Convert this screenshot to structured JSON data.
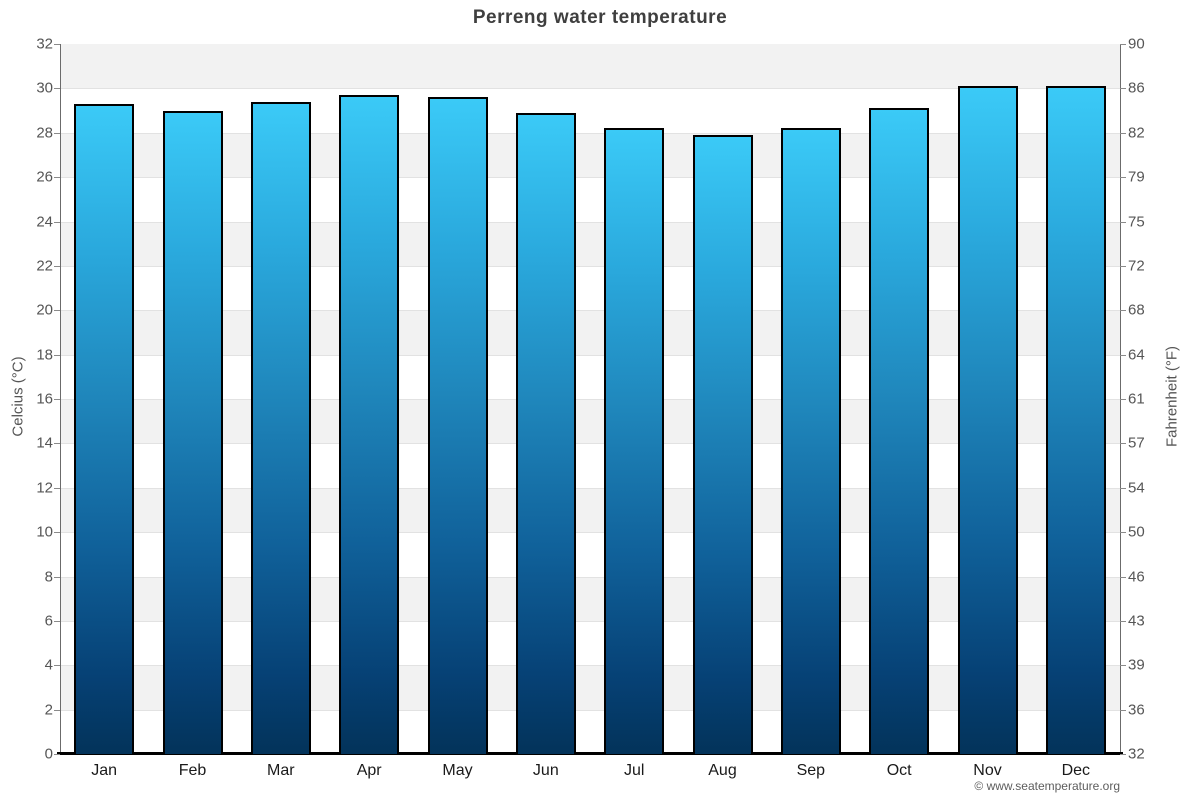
{
  "title": "Perreng water temperature",
  "y_axis_left": {
    "label": "Celcius (°C)",
    "ticks_top_to_bottom": [
      "32",
      "30",
      "28",
      "26",
      "24",
      "22",
      "20",
      "18",
      "16",
      "14",
      "12",
      "10",
      "8",
      "6",
      "4",
      "2",
      "0"
    ]
  },
  "y_axis_right": {
    "label": "Fahrenheit (°F)",
    "ticks_top_to_bottom": [
      "90",
      "86",
      "82",
      "79",
      "75",
      "72",
      "68",
      "64",
      "61",
      "57",
      "54",
      "50",
      "46",
      "43",
      "39",
      "36",
      "32"
    ]
  },
  "footer": {
    "copyright": "© www.seatemperature.org"
  },
  "chart_data": {
    "type": "bar",
    "title": "Perreng water temperature",
    "categories": [
      "Jan",
      "Feb",
      "Mar",
      "Apr",
      "May",
      "Jun",
      "Jul",
      "Aug",
      "Sep",
      "Oct",
      "Nov",
      "Dec"
    ],
    "values": [
      29.3,
      29.0,
      29.4,
      29.7,
      29.6,
      28.9,
      28.2,
      27.9,
      28.2,
      29.1,
      30.1,
      30.1
    ],
    "xlabel": "",
    "ylabel": "Celcius (°C)",
    "ylabel_right": "Fahrenheit (°F)",
    "ylim": [
      0,
      32
    ],
    "ytick_step": 2,
    "grid": "horizontal-bands",
    "legend": "none",
    "colors": {
      "bar_gradient_top": "#3bcaf7",
      "bar_gradient_bottom": "#03335a",
      "bar_border": "#000000",
      "band_gray": "#f2f2f2",
      "band_white": "#ffffff",
      "gridline": "#e2e2e2",
      "title_text": "#3f3f3f",
      "tick_text": "#555555"
    }
  }
}
